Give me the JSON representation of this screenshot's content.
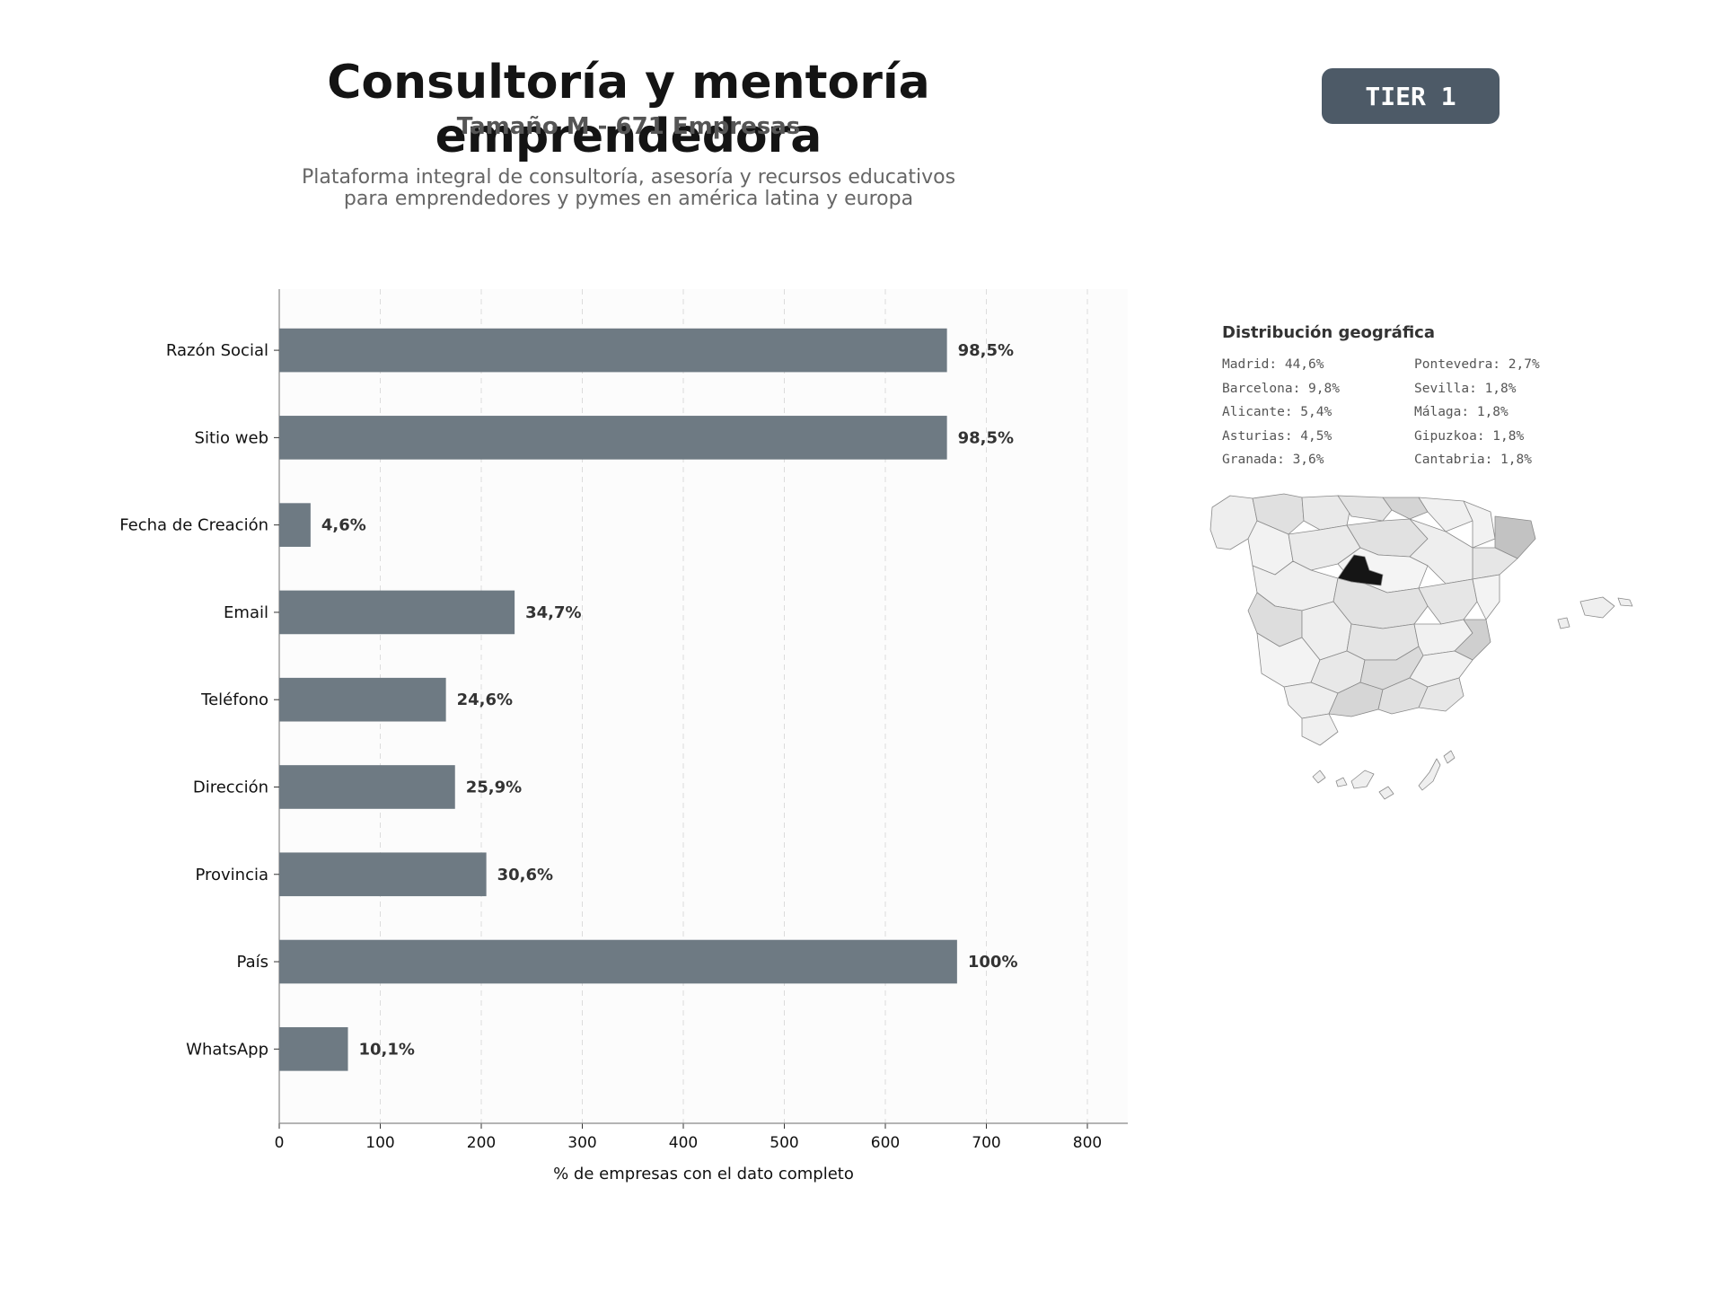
{
  "header": {
    "title": "Consultoría y mentoría emprendedora",
    "subtitle": "Tamaño M - 671 Empresas",
    "description_line1": "Plataforma integral de consultoría, asesoría y recursos educativos",
    "description_line2": "para emprendedores y pymes en américa latina y europa",
    "tier": "TIER 1"
  },
  "chart_data": {
    "type": "bar",
    "orientation": "horizontal",
    "categories": [
      "Razón Social",
      "Sitio web",
      "Fecha de Creación",
      "Email",
      "Teléfono",
      "Dirección",
      "Provincia",
      "País",
      "WhatsApp"
    ],
    "values": [
      661,
      661,
      31,
      233,
      165,
      174,
      205,
      671,
      68
    ],
    "labels": [
      "98,5%",
      "98,5%",
      "4,6%",
      "34,7%",
      "24,6%",
      "25,9%",
      "30,6%",
      "100%",
      "10,1%"
    ],
    "xlabel": "% de empresas con el dato completo",
    "xlim": [
      0,
      840
    ],
    "xticks": [
      0,
      100,
      200,
      300,
      400,
      500,
      600,
      700,
      800
    ],
    "grid": "vertical dashed",
    "bar_color": "#6e7a83"
  },
  "geo": {
    "title": "Distribución geográfica",
    "items": [
      {
        "label": "Madrid: 44,6%"
      },
      {
        "label": "Barcelona: 9,8%"
      },
      {
        "label": "Alicante: 5,4%"
      },
      {
        "label": "Asturias: 4,5%"
      },
      {
        "label": "Granada: 3,6%"
      },
      {
        "label": "Pontevedra: 2,7%"
      },
      {
        "label": "Sevilla: 1,8%"
      },
      {
        "label": "Málaga: 1,8%"
      },
      {
        "label": "Gipuzkoa: 1,8%"
      },
      {
        "label": "Cantabria: 1,8%"
      }
    ]
  }
}
